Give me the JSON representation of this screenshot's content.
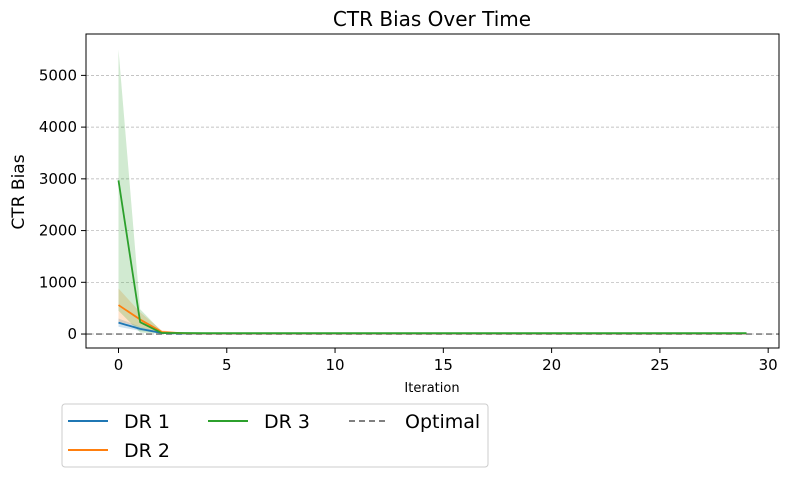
{
  "chart_data": {
    "type": "line",
    "title": "CTR Bias Over Time",
    "xlabel": "Iteration",
    "ylabel": "CTR Bias",
    "xlim": [
      -1.5,
      30.5
    ],
    "ylim": [
      -270,
      5800
    ],
    "xticks": [
      0,
      5,
      10,
      15,
      20,
      25,
      30
    ],
    "yticks": [
      0,
      1000,
      2000,
      3000,
      4000,
      5000
    ],
    "grid": "horizontal dashed",
    "legend_position": "below-left",
    "legend_columns": 3,
    "x": [
      0,
      1,
      2,
      3,
      4,
      5,
      6,
      7,
      8,
      9,
      10,
      11,
      12,
      13,
      14,
      15,
      16,
      17,
      18,
      19,
      20,
      21,
      22,
      23,
      24,
      25,
      26,
      27,
      28,
      29
    ],
    "series": [
      {
        "name": "DR 1",
        "color": "#1f77b4",
        "values": [
          220,
          100,
          20,
          10,
          8,
          8,
          8,
          8,
          8,
          8,
          8,
          8,
          8,
          8,
          8,
          8,
          8,
          8,
          8,
          8,
          8,
          8,
          8,
          8,
          8,
          8,
          8,
          8,
          8,
          8
        ],
        "upper": [
          300,
          140,
          30,
          14,
          12,
          12,
          12,
          12,
          12,
          12,
          12,
          12,
          12,
          12,
          12,
          12,
          12,
          12,
          12,
          12,
          12,
          12,
          12,
          12,
          12,
          12,
          12,
          12,
          12,
          12
        ],
        "lower": [
          140,
          60,
          10,
          6,
          4,
          4,
          4,
          4,
          4,
          4,
          4,
          4,
          4,
          4,
          4,
          4,
          4,
          4,
          4,
          4,
          4,
          4,
          4,
          4,
          4,
          4,
          4,
          4,
          4,
          4
        ]
      },
      {
        "name": "DR 2",
        "color": "#ff7f0e",
        "values": [
          560,
          280,
          40,
          15,
          12,
          12,
          12,
          12,
          12,
          12,
          12,
          12,
          12,
          12,
          12,
          12,
          12,
          12,
          12,
          12,
          12,
          12,
          12,
          12,
          12,
          12,
          12,
          12,
          12,
          12
        ],
        "upper": [
          880,
          420,
          70,
          22,
          18,
          18,
          18,
          18,
          18,
          18,
          18,
          18,
          18,
          18,
          18,
          18,
          18,
          18,
          18,
          18,
          18,
          18,
          18,
          18,
          18,
          18,
          18,
          18,
          18,
          18
        ],
        "lower": [
          240,
          140,
          15,
          8,
          6,
          6,
          6,
          6,
          6,
          6,
          6,
          6,
          6,
          6,
          6,
          6,
          6,
          6,
          6,
          6,
          6,
          6,
          6,
          6,
          6,
          6,
          6,
          6,
          6,
          6
        ]
      },
      {
        "name": "DR 3",
        "color": "#2ca02c",
        "values": [
          2970,
          230,
          20,
          20,
          18,
          18,
          18,
          18,
          18,
          18,
          18,
          18,
          18,
          18,
          18,
          18,
          18,
          18,
          18,
          18,
          18,
          18,
          18,
          18,
          18,
          18,
          18,
          18,
          18,
          18
        ],
        "upper": [
          5500,
          480,
          50,
          28,
          25,
          25,
          25,
          25,
          25,
          25,
          25,
          25,
          25,
          25,
          25,
          25,
          25,
          25,
          25,
          25,
          25,
          25,
          25,
          25,
          25,
          25,
          25,
          25,
          25,
          25
        ],
        "lower": [
          450,
          30,
          5,
          10,
          10,
          10,
          10,
          10,
          10,
          10,
          10,
          10,
          10,
          10,
          10,
          10,
          10,
          10,
          10,
          10,
          10,
          10,
          10,
          10,
          10,
          10,
          10,
          10,
          10,
          10
        ]
      }
    ],
    "reference_line": {
      "name": "Optimal",
      "value": 0,
      "color": "#808080",
      "style": "dashed"
    }
  }
}
